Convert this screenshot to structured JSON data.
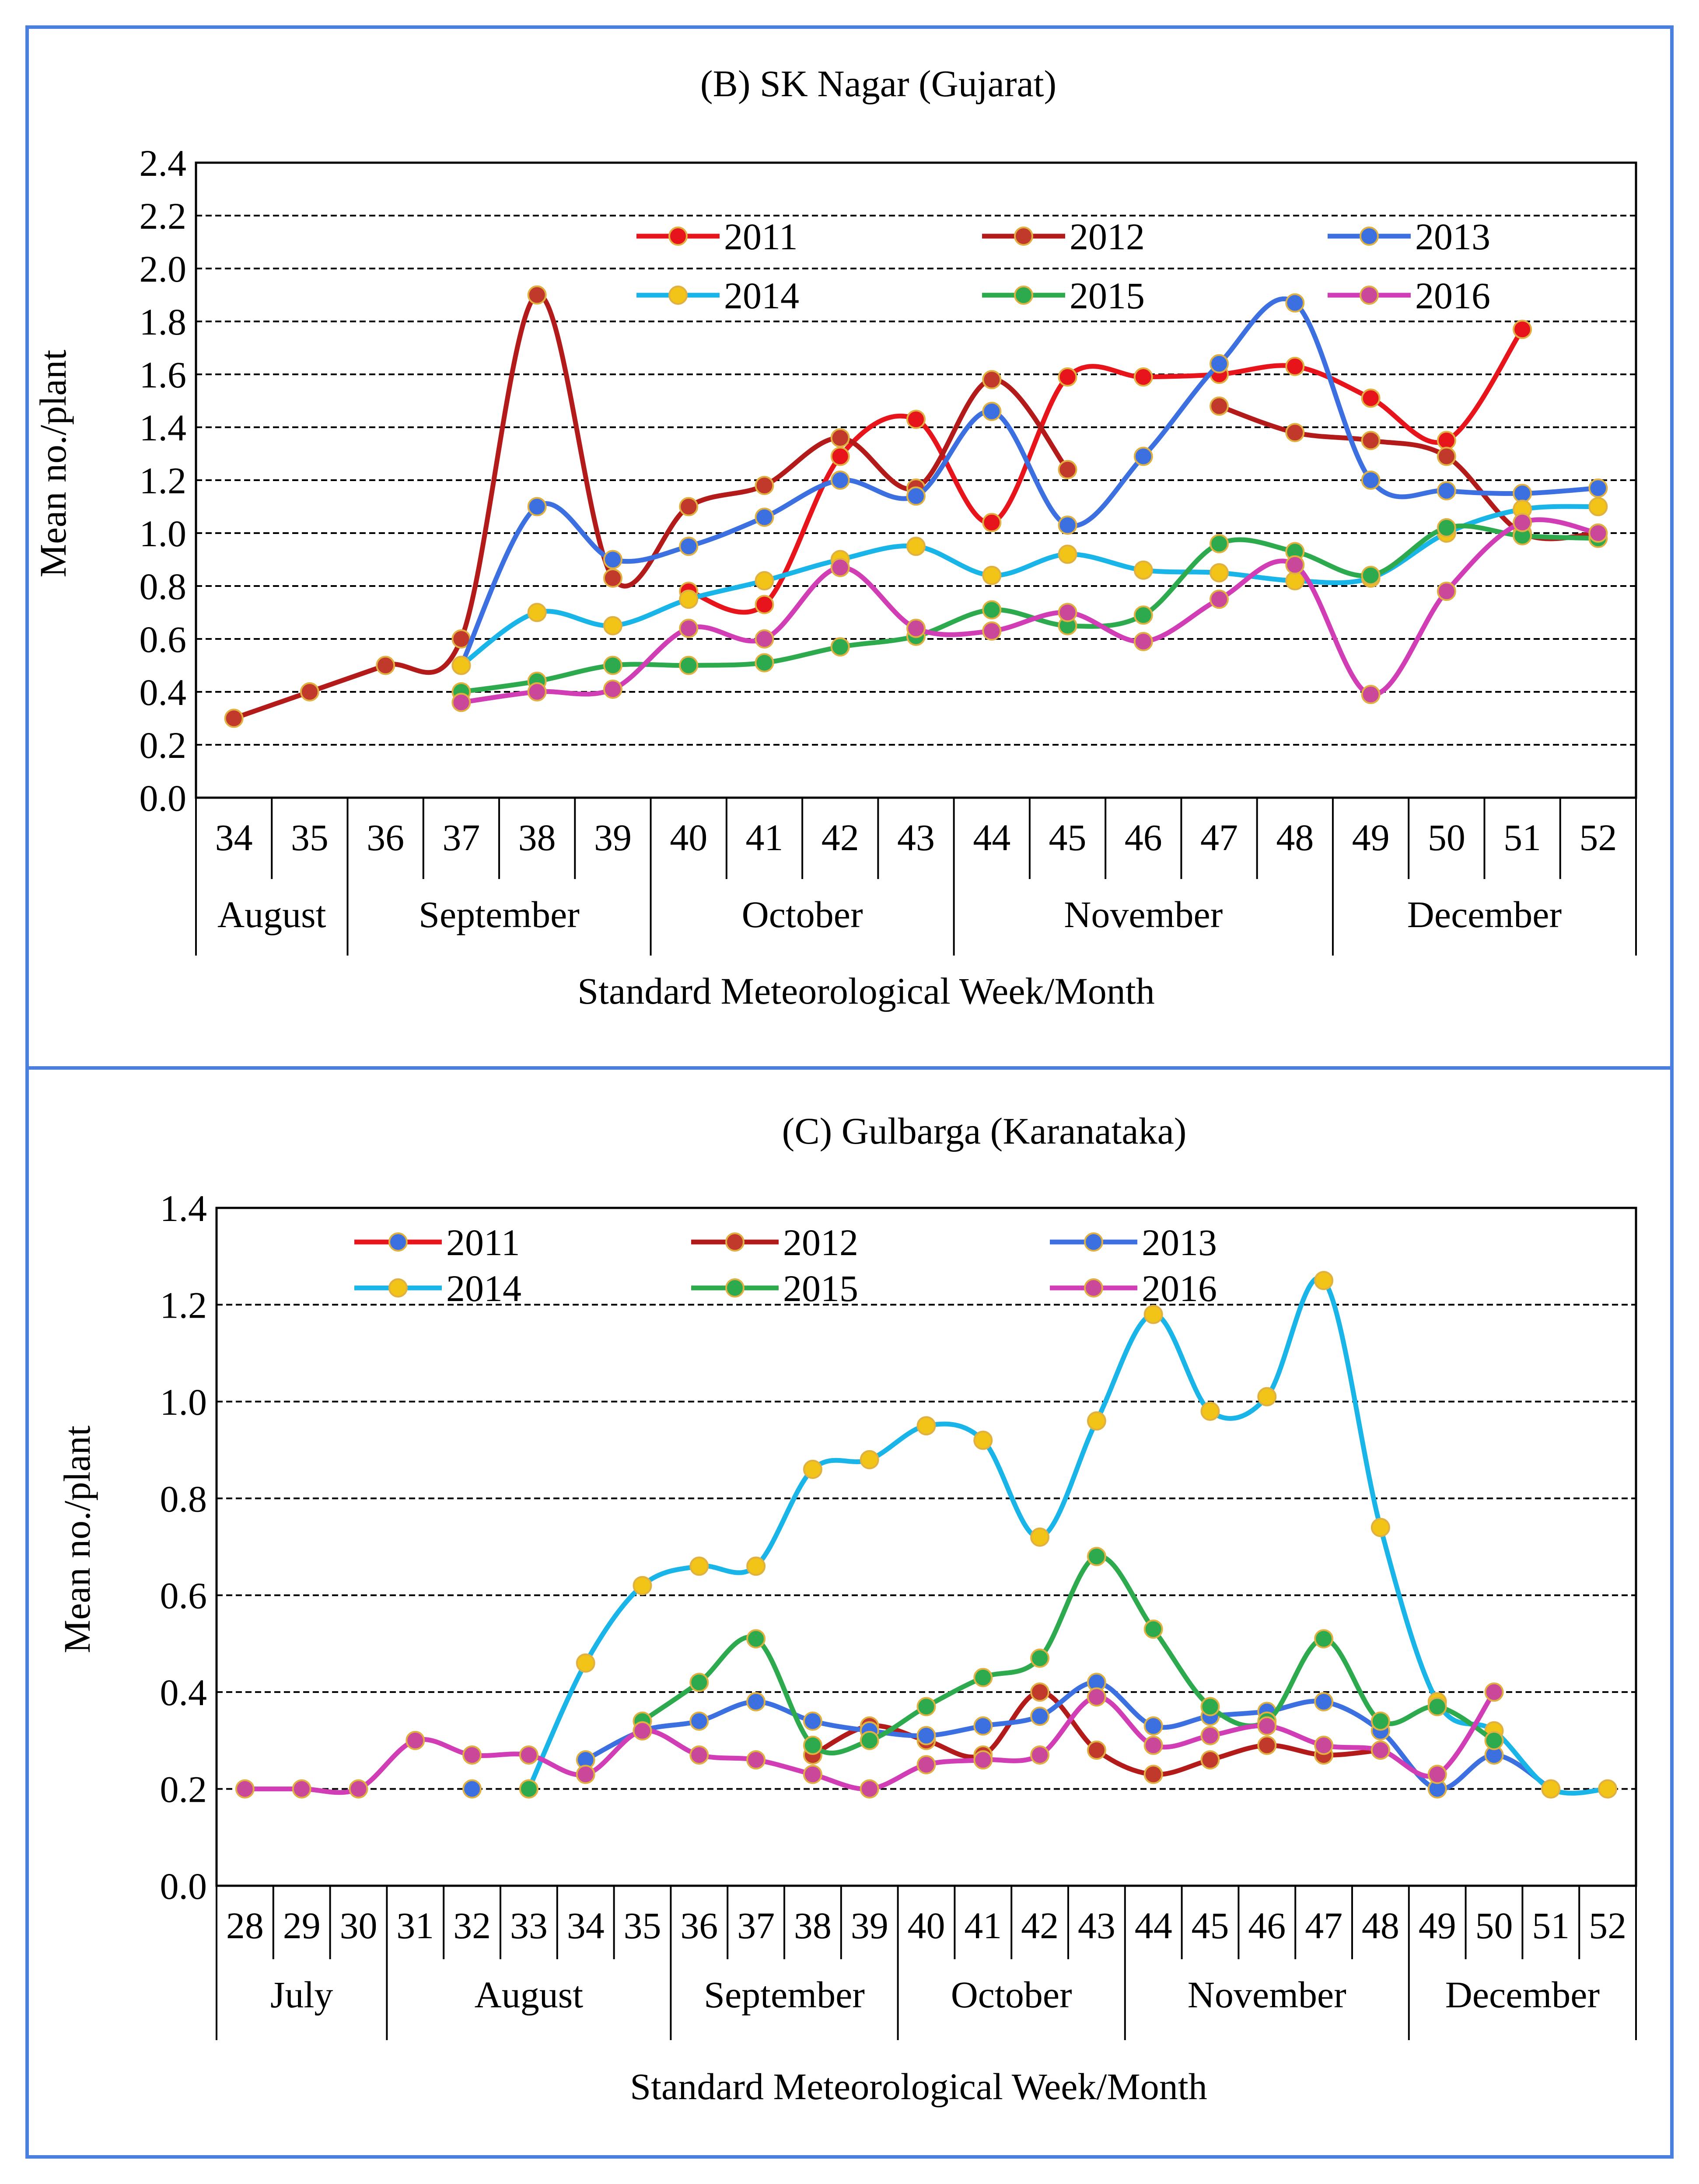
{
  "chart_data": [
    {
      "type": "line",
      "title": "(B) SK Nagar (Gujarat)",
      "xlabel": "Standard Meteorological Week/Month",
      "ylabel": "Mean no./plant",
      "ylim": [
        0,
        2.4
      ],
      "yticks": [
        "0.0",
        "0.2",
        "0.4",
        "0.6",
        "0.8",
        "1.0",
        "1.2",
        "1.4",
        "1.6",
        "1.8",
        "2.0",
        "2.2",
        "2.4"
      ],
      "weeks": [
        34,
        35,
        36,
        37,
        38,
        39,
        40,
        41,
        42,
        43,
        44,
        45,
        46,
        47,
        48,
        49,
        50,
        51,
        52
      ],
      "months": [
        {
          "name": "August",
          "start": 34,
          "end": 35
        },
        {
          "name": "September",
          "start": 36,
          "end": 39
        },
        {
          "name": "October",
          "start": 40,
          "end": 43
        },
        {
          "name": "November",
          "start": 44,
          "end": 48
        },
        {
          "name": "December",
          "start": 49,
          "end": 52
        }
      ],
      "series": [
        {
          "name": "2011",
          "color": "#e8141b",
          "marker": "#e8141b",
          "segments": [
            [
              [
                40,
                0.78
              ],
              [
                41,
                0.73
              ],
              [
                42,
                1.29
              ],
              [
                43,
                1.43
              ],
              [
                44,
                1.04
              ],
              [
                45,
                1.59
              ],
              [
                46,
                1.59
              ],
              [
                47,
                1.6
              ],
              [
                48,
                1.63
              ],
              [
                49,
                1.51
              ],
              [
                50,
                1.35
              ],
              [
                51,
                1.77
              ]
            ]
          ]
        },
        {
          "name": "2012",
          "color": "#b31b1b",
          "marker": "#c0392b",
          "segments": [
            [
              [
                34,
                0.3
              ],
              [
                35,
                0.4
              ],
              [
                36,
                0.5
              ],
              [
                37,
                0.6
              ],
              [
                38,
                1.9
              ],
              [
                39,
                0.83
              ],
              [
                40,
                1.1
              ],
              [
                41,
                1.18
              ],
              [
                42,
                1.36
              ],
              [
                43,
                1.17
              ],
              [
                44,
                1.58
              ],
              [
                45,
                1.24
              ]
            ],
            [
              [
                47,
                1.48
              ],
              [
                48,
                1.38
              ],
              [
                49,
                1.35
              ],
              [
                50,
                1.29
              ],
              [
                51,
                1.0
              ],
              [
                52,
                1.0
              ]
            ]
          ]
        },
        {
          "name": "2013",
          "color": "#3c6fe0",
          "marker": "#3c6fe0",
          "segments": [
            [
              [
                37,
                0.5
              ],
              [
                38,
                1.1
              ],
              [
                39,
                0.9
              ],
              [
                40,
                0.95
              ],
              [
                41,
                1.06
              ],
              [
                42,
                1.2
              ],
              [
                43,
                1.14
              ],
              [
                44,
                1.46
              ],
              [
                45,
                1.03
              ],
              [
                46,
                1.29
              ],
              [
                47,
                1.64
              ],
              [
                48,
                1.87
              ],
              [
                49,
                1.2
              ],
              [
                50,
                1.16
              ],
              [
                51,
                1.15
              ],
              [
                52,
                1.17
              ]
            ]
          ]
        },
        {
          "name": "2014",
          "color": "#19b5e8",
          "marker": "#f2c418",
          "segments": [
            [
              [
                37,
                0.5
              ],
              [
                38,
                0.7
              ],
              [
                39,
                0.65
              ],
              [
                40,
                0.75
              ],
              [
                41,
                0.82
              ],
              [
                42,
                0.9
              ],
              [
                43,
                0.95
              ],
              [
                44,
                0.84
              ],
              [
                45,
                0.92
              ],
              [
                46,
                0.86
              ],
              [
                47,
                0.85
              ],
              [
                48,
                0.82
              ],
              [
                49,
                0.83
              ],
              [
                50,
                1.0
              ],
              [
                51,
                1.09
              ],
              [
                52,
                1.1
              ]
            ]
          ]
        },
        {
          "name": "2015",
          "color": "#2daa4e",
          "marker": "#2daa4e",
          "segments": [
            [
              [
                37,
                0.4
              ],
              [
                38,
                0.44
              ],
              [
                39,
                0.5
              ],
              [
                40,
                0.5
              ],
              [
                41,
                0.51
              ],
              [
                42,
                0.57
              ],
              [
                43,
                0.61
              ],
              [
                44,
                0.71
              ],
              [
                45,
                0.65
              ],
              [
                46,
                0.69
              ],
              [
                47,
                0.96
              ],
              [
                48,
                0.93
              ],
              [
                49,
                0.84
              ],
              [
                50,
                1.02
              ],
              [
                51,
                0.99
              ],
              [
                52,
                0.98
              ]
            ]
          ]
        },
        {
          "name": "2016",
          "color": "#d13db5",
          "marker": "#c9489a",
          "segments": [
            [
              [
                37,
                0.36
              ],
              [
                38,
                0.4
              ],
              [
                39,
                0.41
              ],
              [
                40,
                0.64
              ],
              [
                41,
                0.6
              ],
              [
                42,
                0.87
              ],
              [
                43,
                0.64
              ],
              [
                44,
                0.63
              ],
              [
                45,
                0.7
              ],
              [
                46,
                0.59
              ],
              [
                47,
                0.75
              ],
              [
                48,
                0.88
              ],
              [
                49,
                0.39
              ],
              [
                50,
                0.78
              ],
              [
                51,
                1.04
              ],
              [
                52,
                1.0
              ]
            ]
          ]
        }
      ]
    },
    {
      "type": "line",
      "title": "(C) Gulbarga (Karanataka)",
      "xlabel": "Standard Meteorological Week/Month",
      "ylabel": "Mean no./plant",
      "ylim": [
        0,
        1.4
      ],
      "yticks": [
        "0.0",
        "0.2",
        "0.4",
        "0.6",
        "0.8",
        "1.0",
        "1.2",
        "1.4"
      ],
      "weeks": [
        28,
        29,
        30,
        31,
        32,
        33,
        34,
        35,
        36,
        37,
        38,
        39,
        40,
        41,
        42,
        43,
        44,
        45,
        46,
        47,
        48,
        49,
        50,
        51,
        52
      ],
      "months": [
        {
          "name": "July",
          "start": 28,
          "end": 30
        },
        {
          "name": "August",
          "start": 31,
          "end": 35
        },
        {
          "name": "September",
          "start": 36,
          "end": 39
        },
        {
          "name": "October",
          "start": 40,
          "end": 43
        },
        {
          "name": "November",
          "start": 44,
          "end": 48
        },
        {
          "name": "December",
          "start": 49,
          "end": 52
        }
      ],
      "series": [
        {
          "name": "2011",
          "color": "#e8141b",
          "marker": "#3c6fe0",
          "segments": []
        },
        {
          "name": "2012",
          "color": "#b31b1b",
          "marker": "#c0392b",
          "segments": [
            [
              [
                38,
                0.27
              ],
              [
                39,
                0.33
              ],
              [
                40,
                0.3
              ],
              [
                41,
                0.27
              ],
              [
                42,
                0.4
              ],
              [
                43,
                0.28
              ],
              [
                44,
                0.23
              ],
              [
                45,
                0.26
              ],
              [
                46,
                0.29
              ],
              [
                47,
                0.27
              ],
              [
                48,
                0.28
              ]
            ]
          ]
        },
        {
          "name": "2013",
          "color": "#3c6fe0",
          "marker": "#3c6fe0",
          "segments": [
            [
              [
                32,
                0.2
              ]
            ],
            [
              [
                34,
                0.26
              ],
              [
                35,
                0.32
              ],
              [
                36,
                0.34
              ],
              [
                37,
                0.38
              ],
              [
                38,
                0.34
              ],
              [
                39,
                0.32
              ],
              [
                40,
                0.31
              ],
              [
                41,
                0.33
              ],
              [
                42,
                0.35
              ],
              [
                43,
                0.42
              ],
              [
                44,
                0.33
              ],
              [
                45,
                0.35
              ],
              [
                46,
                0.36
              ],
              [
                47,
                0.38
              ],
              [
                48,
                0.32
              ],
              [
                49,
                0.2
              ],
              [
                50,
                0.27
              ],
              [
                51,
                0.2
              ]
            ]
          ]
        },
        {
          "name": "2014",
          "color": "#19b5e8",
          "marker": "#f2c418",
          "segments": [
            [
              [
                33,
                0.2
              ],
              [
                34,
                0.46
              ],
              [
                35,
                0.62
              ],
              [
                36,
                0.66
              ],
              [
                37,
                0.66
              ],
              [
                38,
                0.86
              ],
              [
                39,
                0.88
              ],
              [
                40,
                0.95
              ],
              [
                41,
                0.92
              ],
              [
                42,
                0.72
              ],
              [
                43,
                0.96
              ],
              [
                44,
                1.18
              ],
              [
                45,
                0.98
              ],
              [
                46,
                1.01
              ],
              [
                47,
                1.25
              ],
              [
                48,
                0.74
              ],
              [
                49,
                0.38
              ],
              [
                50,
                0.32
              ],
              [
                51,
                0.2
              ],
              [
                52,
                0.2
              ]
            ]
          ]
        },
        {
          "name": "2015",
          "color": "#2daa4e",
          "marker": "#2daa4e",
          "segments": [
            [
              [
                33,
                0.2
              ]
            ],
            [
              [
                35,
                0.34
              ],
              [
                36,
                0.42
              ],
              [
                37,
                0.51
              ],
              [
                38,
                0.29
              ],
              [
                39,
                0.3
              ],
              [
                40,
                0.37
              ],
              [
                41,
                0.43
              ],
              [
                42,
                0.47
              ],
              [
                43,
                0.68
              ],
              [
                44,
                0.53
              ],
              [
                45,
                0.37
              ],
              [
                46,
                0.34
              ],
              [
                47,
                0.51
              ],
              [
                48,
                0.34
              ],
              [
                49,
                0.37
              ],
              [
                50,
                0.3
              ]
            ]
          ]
        },
        {
          "name": "2016",
          "color": "#d13db5",
          "marker": "#c9489a",
          "segments": [
            [
              [
                28,
                0.2
              ],
              [
                29,
                0.2
              ],
              [
                30,
                0.2
              ],
              [
                31,
                0.3
              ],
              [
                32,
                0.27
              ],
              [
                33,
                0.27
              ],
              [
                34,
                0.23
              ],
              [
                35,
                0.32
              ],
              [
                36,
                0.27
              ],
              [
                37,
                0.26
              ],
              [
                38,
                0.23
              ],
              [
                39,
                0.2
              ],
              [
                40,
                0.25
              ],
              [
                41,
                0.26
              ],
              [
                42,
                0.27
              ],
              [
                43,
                0.39
              ],
              [
                44,
                0.29
              ],
              [
                45,
                0.31
              ],
              [
                46,
                0.33
              ],
              [
                47,
                0.29
              ],
              [
                48,
                0.28
              ],
              [
                49,
                0.23
              ],
              [
                50,
                0.4
              ]
            ]
          ]
        }
      ]
    }
  ]
}
